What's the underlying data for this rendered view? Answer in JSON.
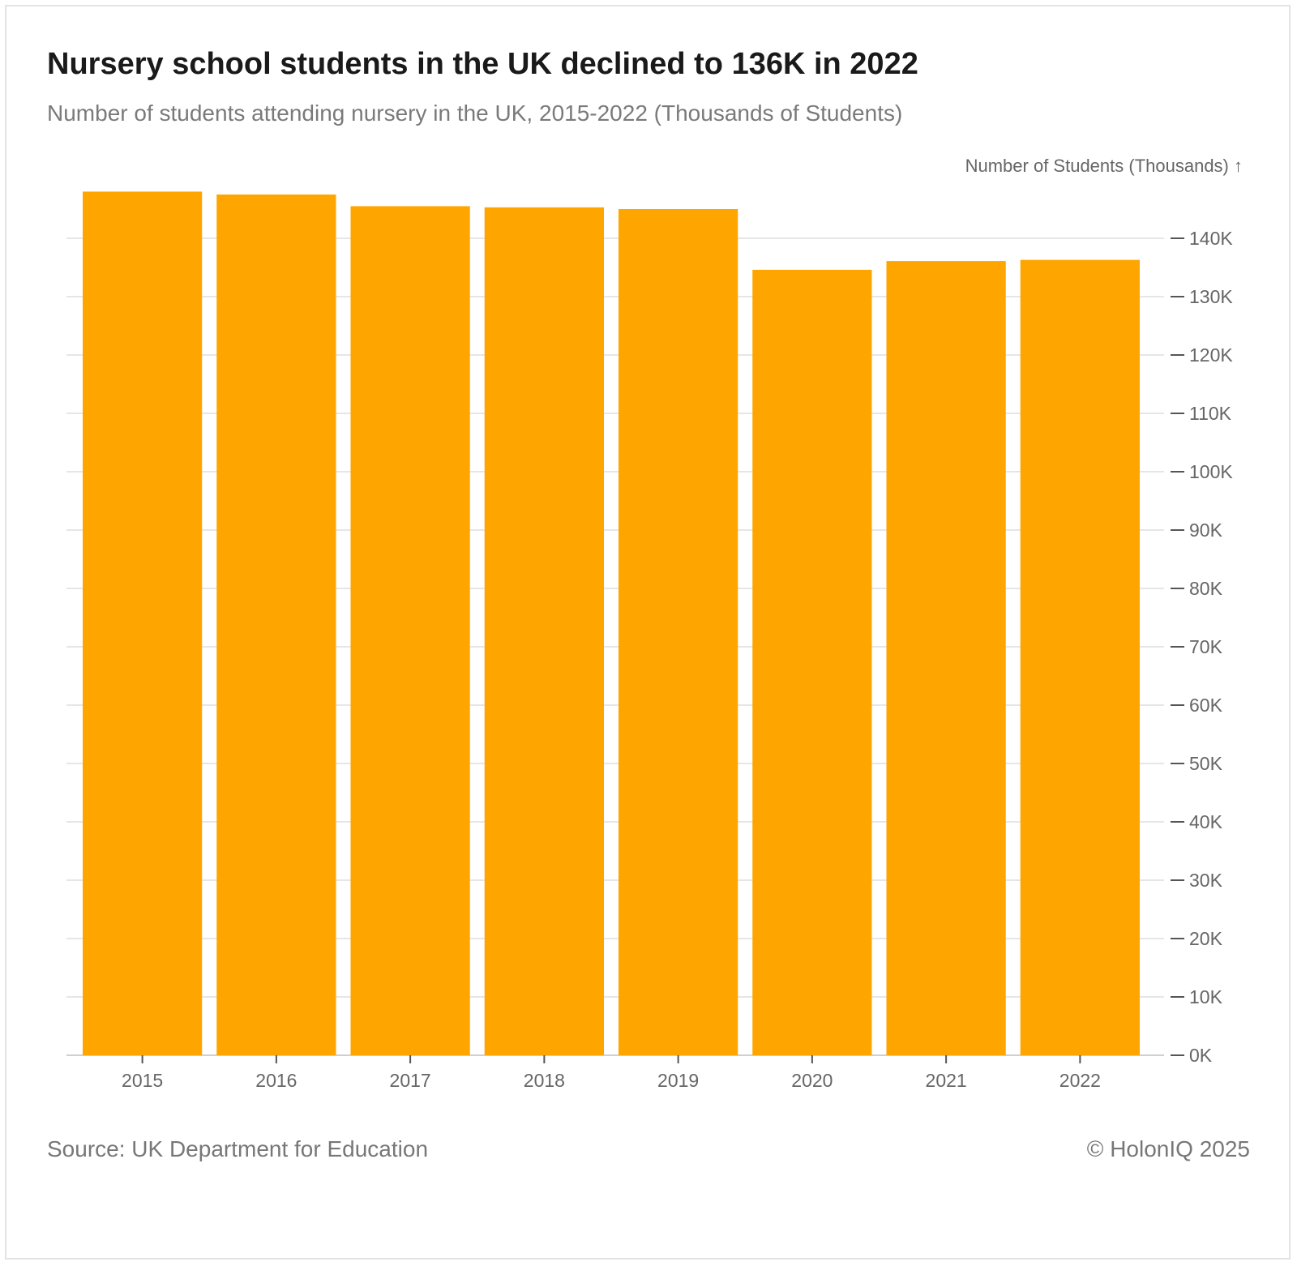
{
  "title": "Nursery school students in the UK declined to 136K in 2022",
  "subtitle": "Number of students attending nursery in the UK, 2015-2022 (Thousands of Students)",
  "source": "Source: UK Department for Education",
  "copyright": "© HolonIQ 2025",
  "colors": {
    "bar": "#FFA500",
    "grid": "#e6e6e6",
    "axis_text": "#666666"
  },
  "chart_data": {
    "type": "bar",
    "title": "Nursery school students in the UK declined to 136K in 2022",
    "ylabel": "Number of Students (Thousands)",
    "ylabel_arrow": "↑",
    "xlabel": "",
    "categories": [
      "2015",
      "2016",
      "2017",
      "2018",
      "2019",
      "2020",
      "2021",
      "2022"
    ],
    "values": [
      148,
      147.5,
      145.5,
      145.3,
      145,
      134.6,
      136.1,
      136.3
    ],
    "ylim": [
      0,
      148
    ],
    "yticks": [
      0,
      10,
      20,
      30,
      40,
      50,
      60,
      70,
      80,
      90,
      100,
      110,
      120,
      130,
      140
    ],
    "ytick_labels": [
      "0K",
      "10K",
      "20K",
      "30K",
      "40K",
      "50K",
      "60K",
      "70K",
      "80K",
      "90K",
      "100K",
      "110K",
      "120K",
      "130K",
      "140K"
    ],
    "y_axis_side": "right",
    "grid": true
  }
}
